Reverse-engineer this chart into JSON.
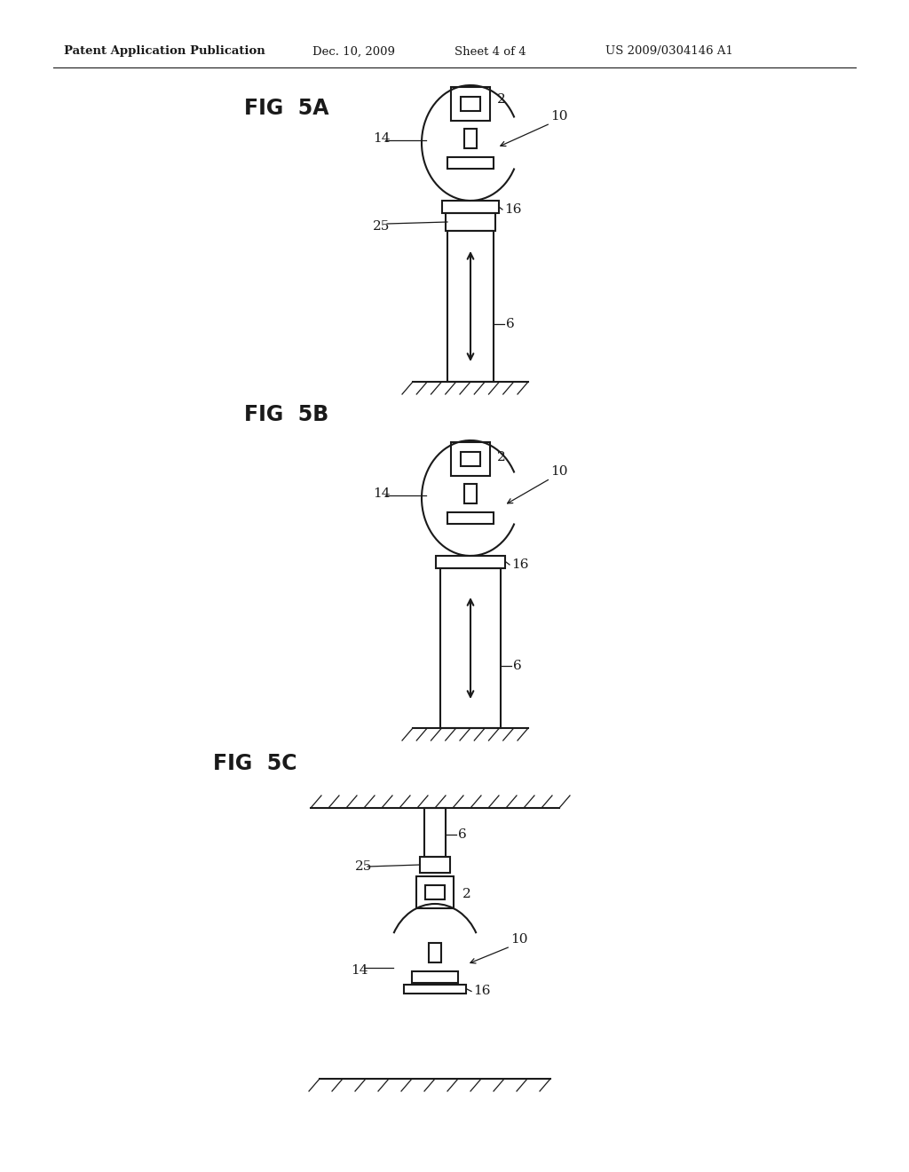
{
  "title_header": "Patent Application Publication",
  "date": "Dec. 10, 2009",
  "sheet": "Sheet 4 of 4",
  "patent_num": "US 2009/0304146 A1",
  "background": "#ffffff",
  "line_color": "#1a1a1a",
  "fig5a_label": "FIG  5A",
  "fig5b_label": "FIG  5B",
  "fig5c_label": "FIG  5C",
  "header_fontsize": 9.5,
  "fig_label_fontsize": 17,
  "annotation_fontsize": 11,
  "lw": 1.5,
  "lw_thin": 0.9
}
